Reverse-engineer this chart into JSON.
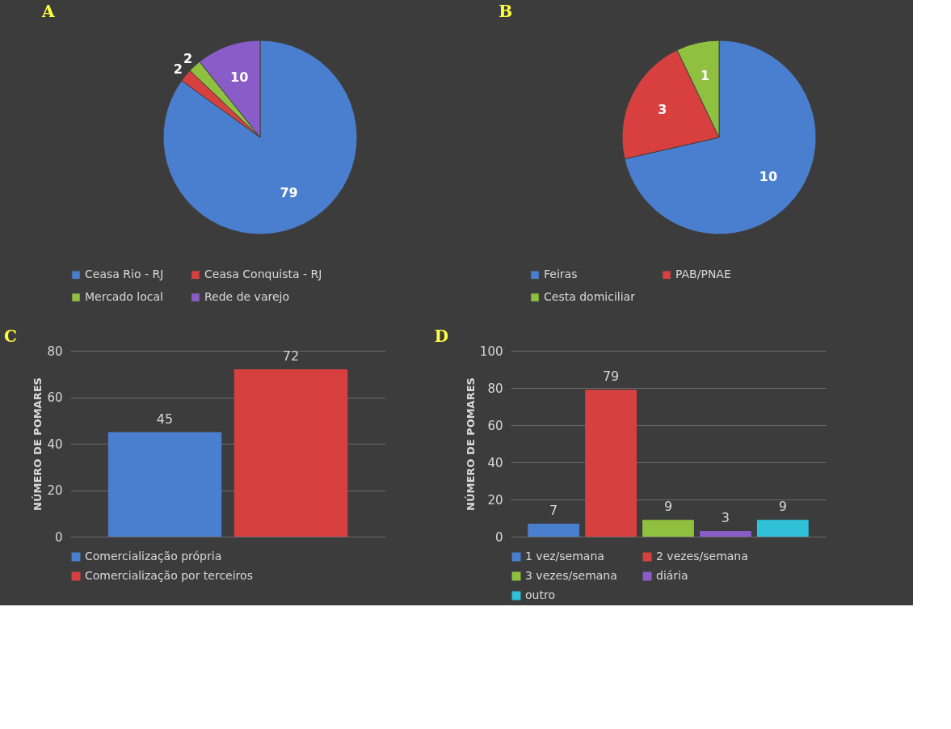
{
  "chart_data": [
    {
      "type": "pie",
      "title": "A",
      "categories": [
        "Ceasa Rio - RJ",
        "Ceasa Conquista - RJ",
        "Mercado local",
        "Rede de varejo"
      ],
      "values": [
        79,
        2,
        2,
        10
      ],
      "colors": [
        "#4a7fd0",
        "#d84040",
        "#8fc040",
        "#8a5cc8"
      ],
      "data_labels": true,
      "legend": "bottom"
    },
    {
      "type": "pie",
      "title": "B",
      "categories": [
        "Feiras",
        "PAB/PNAE",
        "Cesta domiciliar"
      ],
      "values": [
        10,
        3,
        1
      ],
      "colors": [
        "#4a7fd0",
        "#d84040",
        "#8fc040"
      ],
      "data_labels": true,
      "legend": "bottom"
    },
    {
      "type": "bar",
      "title": "C",
      "ylabel": "NÚMERO DE POMARES",
      "categories": [
        null
      ],
      "series": [
        {
          "name": "Comercialização própria",
          "color": "#4a7fd0",
          "values": [
            45
          ]
        },
        {
          "name": "Comercialização por terceiros",
          "color": "#d84040",
          "values": [
            72
          ]
        }
      ],
      "ylim": [
        0,
        80
      ],
      "yticks": [
        0,
        20,
        40,
        60,
        80
      ],
      "grid": "y",
      "data_labels": true,
      "legend": "bottom",
      "tick_labels": "y"
    },
    {
      "type": "bar",
      "title": "D",
      "ylabel": "NÚMERO DE POMARES",
      "categories": [
        null
      ],
      "series": [
        {
          "name": "1 vez/semana",
          "color": "#4a7fd0",
          "values": [
            7
          ]
        },
        {
          "name": "2 vezes/semana",
          "color": "#d84040",
          "values": [
            79
          ]
        },
        {
          "name": "3 vezes/semana",
          "color": "#8fc040",
          "values": [
            9
          ]
        },
        {
          "name": "diária",
          "color": "#8a5cc8",
          "values": [
            3
          ]
        },
        {
          "name": "outro",
          "color": "#30c0d8",
          "values": [
            9
          ]
        }
      ],
      "ylim": [
        0,
        100
      ],
      "yticks": [
        0,
        20,
        40,
        60,
        80,
        100
      ],
      "grid": "y",
      "data_labels": true,
      "legend": "bottom",
      "tick_labels": "y"
    }
  ]
}
